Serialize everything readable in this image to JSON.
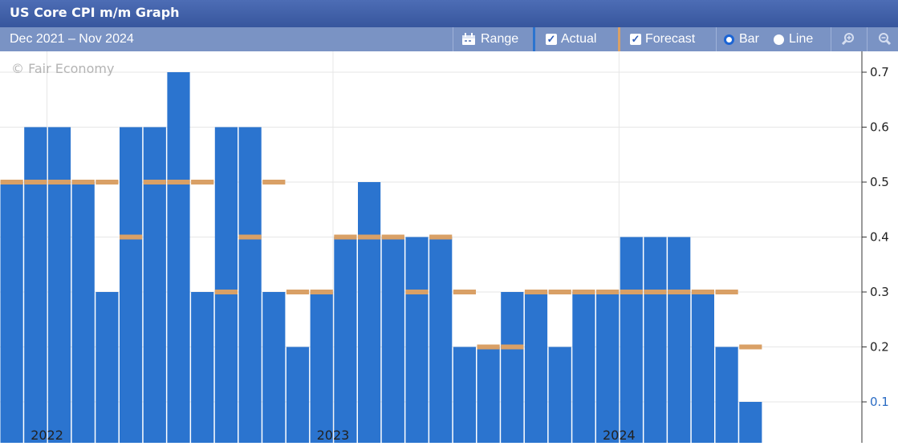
{
  "title": "US Core CPI m/m Graph",
  "toolbar": {
    "date_range": "Dec 2021 – Nov 2024",
    "range_label": "Range",
    "actual_label": "Actual",
    "forecast_label": "Forecast",
    "bar_label": "Bar",
    "line_label": "Line",
    "actual_checked": true,
    "forecast_checked": true,
    "selected_mode": "Bar"
  },
  "watermark": "© Fair Economy",
  "icons": [
    "calendar-icon",
    "check-icon",
    "radio-icon",
    "zoom-in-icon",
    "zoom-out-icon"
  ],
  "colors": {
    "title_bar": "#3f5fa8",
    "toolbar": "#7a93c4",
    "actual_bar": "#2b74cf",
    "forecast_marker": "#d9a066",
    "grid": "#e6e6e6"
  },
  "chart_data": {
    "type": "bar",
    "categories": [
      "Dec 2021",
      "Jan 2022",
      "Feb 2022",
      "Mar 2022",
      "Apr 2022",
      "May 2022",
      "Jun 2022",
      "Jul 2022",
      "Aug 2022",
      "Sep 2022",
      "Oct 2022",
      "Nov 2022",
      "Dec 2022",
      "Jan 2023",
      "Feb 2023",
      "Mar 2023",
      "Apr 2023",
      "May 2023",
      "Jun 2023",
      "Jul 2023",
      "Aug 2023",
      "Sep 2023",
      "Oct 2023",
      "Nov 2023",
      "Dec 2023",
      "Jan 2024",
      "Feb 2024",
      "Mar 2024",
      "Apr 2024",
      "May 2024",
      "Jun 2024",
      "Jul 2024",
      "Aug 2024",
      "Sep 2024",
      "Oct 2024",
      "Nov 2024"
    ],
    "series": [
      {
        "name": "Actual",
        "values": [
          0.5,
          0.6,
          0.6,
          0.5,
          0.3,
          0.6,
          0.6,
          0.7,
          0.3,
          0.6,
          0.6,
          0.3,
          0.2,
          0.3,
          0.4,
          0.5,
          0.4,
          0.4,
          0.4,
          0.2,
          0.2,
          0.3,
          0.3,
          0.2,
          0.3,
          0.3,
          0.4,
          0.4,
          0.4,
          0.3,
          0.2,
          0.1,
          null,
          null,
          null,
          null
        ]
      },
      {
        "name": "Forecast",
        "values": [
          0.5,
          0.5,
          0.5,
          0.5,
          0.5,
          0.4,
          0.5,
          0.5,
          0.5,
          0.3,
          0.4,
          0.5,
          0.3,
          0.3,
          0.4,
          0.4,
          0.4,
          0.3,
          0.4,
          0.3,
          0.2,
          0.2,
          0.3,
          0.3,
          0.3,
          0.3,
          0.3,
          0.3,
          0.3,
          0.3,
          0.3,
          0.2,
          null,
          null,
          null,
          null
        ]
      }
    ],
    "x_tick_labels": [
      "2022",
      "2023",
      "2024"
    ],
    "y_ticks": [
      0.1,
      0.2,
      0.3,
      0.4,
      0.5,
      0.6,
      0.7
    ],
    "y_tick_labels": [
      "0.1",
      "0.2",
      "0.3",
      "0.4",
      "0.5",
      "0.6",
      "0.7"
    ],
    "ylim": [
      0.1,
      0.7
    ],
    "grid": true,
    "axis_position": "right"
  }
}
